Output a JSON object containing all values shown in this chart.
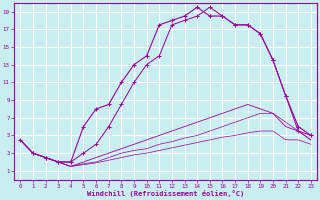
{
  "xlabel": "Windchill (Refroidissement éolien,°C)",
  "background_color": "#c8eef0",
  "line_color": "#990099",
  "grid_color": "#ffffff",
  "xlim": [
    -0.5,
    23.5
  ],
  "ylim": [
    0,
    20
  ],
  "xticks": [
    0,
    1,
    2,
    3,
    4,
    5,
    6,
    7,
    8,
    9,
    10,
    11,
    12,
    13,
    14,
    15,
    16,
    17,
    18,
    19,
    20,
    21,
    22,
    23
  ],
  "yticks": [
    1,
    3,
    5,
    7,
    9,
    11,
    13,
    15,
    17,
    19
  ],
  "curve1_x": [
    0,
    1,
    2,
    3,
    4,
    5,
    6,
    7,
    8,
    9,
    10,
    11,
    12,
    13,
    14,
    15,
    16,
    17,
    18,
    19,
    20,
    21,
    22,
    23
  ],
  "curve1_y": [
    4.5,
    3.0,
    2.5,
    2.0,
    2.0,
    6.0,
    8.0,
    8.5,
    11.0,
    13.0,
    14.0,
    17.5,
    18.0,
    18.5,
    19.5,
    18.5,
    18.5,
    17.5,
    17.5,
    16.5,
    13.5,
    9.5,
    6.0,
    5.0
  ],
  "curve2_x": [
    1,
    2,
    3,
    4,
    5,
    6,
    7,
    8,
    9,
    10,
    11,
    12,
    13,
    14,
    15,
    16,
    17,
    18,
    19,
    20,
    21,
    22,
    23
  ],
  "curve2_y": [
    3.0,
    2.5,
    2.0,
    2.0,
    3.0,
    4.0,
    6.0,
    8.5,
    11.0,
    13.0,
    14.0,
    17.5,
    18.0,
    18.5,
    19.5,
    18.5,
    17.5,
    17.5,
    16.5,
    13.5,
    9.5,
    5.5,
    5.0
  ],
  "curve3_x": [
    0,
    1,
    2,
    3,
    4,
    5,
    6,
    7,
    8,
    9,
    10,
    11,
    12,
    13,
    14,
    15,
    16,
    17,
    18,
    19,
    20,
    21,
    22,
    23
  ],
  "curve3_y": [
    4.5,
    3.0,
    2.5,
    2.0,
    1.5,
    2.0,
    2.5,
    3.0,
    3.5,
    4.0,
    4.5,
    5.0,
    5.5,
    6.0,
    6.5,
    7.0,
    7.5,
    8.0,
    8.5,
    8.0,
    7.5,
    6.0,
    5.5,
    4.5
  ],
  "curve4_x": [
    0,
    1,
    2,
    3,
    4,
    5,
    6,
    7,
    8,
    9,
    10,
    11,
    12,
    13,
    14,
    15,
    16,
    17,
    18,
    19,
    20,
    21,
    22,
    23
  ],
  "curve4_y": [
    4.5,
    3.0,
    2.5,
    2.0,
    1.5,
    1.8,
    2.0,
    2.5,
    3.0,
    3.3,
    3.5,
    4.0,
    4.3,
    4.7,
    5.0,
    5.5,
    6.0,
    6.5,
    7.0,
    7.5,
    7.5,
    6.5,
    5.5,
    4.5
  ],
  "curve5_x": [
    0,
    1,
    2,
    3,
    4,
    5,
    6,
    7,
    8,
    9,
    10,
    11,
    12,
    13,
    14,
    15,
    16,
    17,
    18,
    19,
    20,
    21,
    22,
    23
  ],
  "curve5_y": [
    4.5,
    3.0,
    2.5,
    2.0,
    1.5,
    1.7,
    1.9,
    2.2,
    2.5,
    2.8,
    3.0,
    3.3,
    3.6,
    3.9,
    4.2,
    4.5,
    4.8,
    5.0,
    5.3,
    5.5,
    5.5,
    4.5,
    4.5,
    4.0
  ]
}
